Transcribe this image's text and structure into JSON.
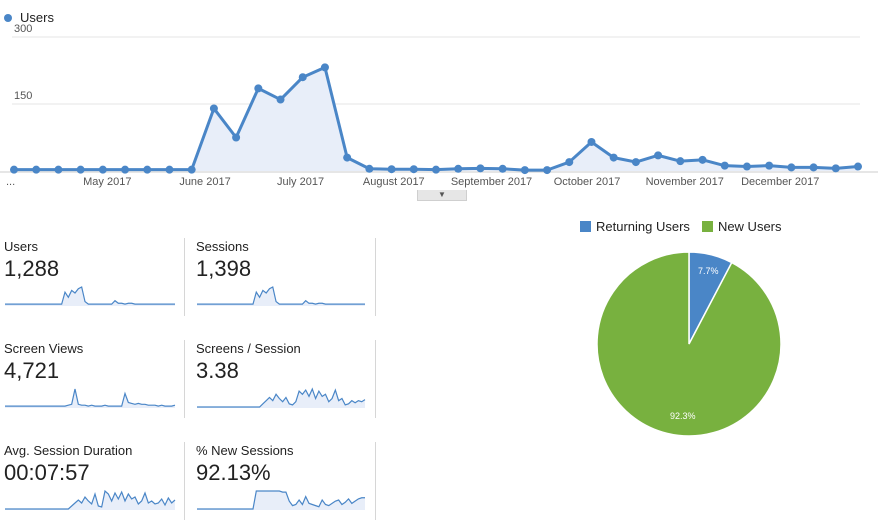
{
  "chart_legend": {
    "label": "Users",
    "color": "#4a86c7"
  },
  "expand_handle_icon": "caret-down",
  "chart_data": [
    {
      "type": "area",
      "x_tick_labels": [
        "...",
        "May 2017",
        "June 2017",
        "July 2017",
        "August 2017",
        "September 2017",
        "October 2017",
        "November 2017",
        "December 2017"
      ],
      "y_tick_labels": [
        "300",
        "150"
      ],
      "ylim": [
        0,
        300
      ],
      "grid": true,
      "series": [
        {
          "name": "Users",
          "color": "#4a86c7",
          "values": [
            3,
            3,
            3,
            3,
            3,
            3,
            3,
            3,
            3,
            140,
            75,
            185,
            160,
            210,
            232,
            30,
            5,
            4,
            4,
            3,
            5,
            6,
            5,
            2,
            2,
            20,
            65,
            30,
            20,
            35,
            22,
            25,
            12,
            10,
            12,
            8,
            8,
            6,
            10
          ]
        }
      ]
    },
    {
      "type": "pie",
      "legend_position": "top",
      "slices": [
        {
          "name": "Returning Users",
          "value": 7.7,
          "label": "7.7%",
          "color": "#4a86c7"
        },
        {
          "name": "New Users",
          "value": 92.3,
          "label": "92.3%",
          "color": "#78b13f"
        }
      ]
    }
  ],
  "metrics": [
    {
      "label": "Users",
      "value": "1,288",
      "spark": [
        1,
        1,
        1,
        1,
        1,
        1,
        1,
        1,
        1,
        1,
        1,
        1,
        1,
        1,
        1,
        1,
        1,
        1,
        15,
        9,
        17,
        14,
        19,
        21,
        4,
        1,
        1,
        1,
        1,
        1,
        1,
        1,
        1,
        5,
        2,
        2,
        1,
        2,
        2,
        1,
        1,
        1,
        1,
        1,
        1,
        1,
        1,
        1,
        1,
        1,
        1,
        1
      ]
    },
    {
      "label": "Sessions",
      "value": "1,398",
      "spark": [
        1,
        1,
        1,
        1,
        1,
        1,
        1,
        1,
        1,
        1,
        1,
        1,
        1,
        1,
        1,
        1,
        1,
        1,
        15,
        9,
        17,
        14,
        19,
        21,
        4,
        1,
        1,
        1,
        1,
        1,
        1,
        1,
        1,
        5,
        2,
        2,
        1,
        2,
        2,
        1,
        1,
        1,
        1,
        1,
        1,
        1,
        1,
        1,
        1,
        1,
        1,
        1
      ]
    },
    {
      "label": "Screen Views",
      "value": "4,721",
      "spark": [
        1,
        1,
        1,
        1,
        1,
        1,
        1,
        1,
        1,
        1,
        1,
        1,
        1,
        1,
        1,
        1,
        1,
        1,
        1,
        2,
        3,
        20,
        3,
        2,
        2,
        1,
        2,
        1,
        1,
        1,
        2,
        1,
        1,
        1,
        1,
        1,
        15,
        5,
        4,
        3,
        4,
        3,
        3,
        2,
        2,
        2,
        1,
        2,
        1,
        1,
        1,
        2
      ]
    },
    {
      "label": "Screens / Session",
      "value": "3.38",
      "spark": [
        0,
        0,
        0,
        0,
        0,
        0,
        0,
        0,
        0,
        0,
        0,
        0,
        0,
        0,
        0,
        0,
        0,
        0,
        0,
        0,
        3,
        6,
        9,
        6,
        12,
        8,
        5,
        9,
        3,
        2,
        5,
        15,
        12,
        16,
        10,
        17,
        8,
        15,
        10,
        12,
        5,
        8,
        16,
        6,
        8,
        2,
        3,
        6,
        4,
        6,
        5,
        7
      ]
    },
    {
      "label": "Avg. Session Duration",
      "value": "00:07:57",
      "spark": [
        0,
        0,
        0,
        0,
        0,
        0,
        0,
        0,
        0,
        0,
        0,
        0,
        0,
        0,
        0,
        0,
        0,
        0,
        0,
        0,
        3,
        6,
        9,
        6,
        12,
        8,
        5,
        15,
        3,
        2,
        18,
        15,
        8,
        16,
        10,
        17,
        8,
        15,
        10,
        12,
        5,
        8,
        16,
        6,
        8,
        5,
        6,
        10,
        4,
        11,
        6,
        9
      ]
    },
    {
      "label": "% New Sessions",
      "value": "92.13%",
      "spark": [
        0,
        0,
        0,
        0,
        0,
        0,
        0,
        0,
        0,
        0,
        0,
        0,
        0,
        0,
        0,
        0,
        0,
        0,
        16,
        16,
        16,
        16,
        16,
        16,
        16,
        16,
        15,
        15,
        7,
        3,
        4,
        8,
        4,
        11,
        5,
        4,
        3,
        2,
        8,
        4,
        3,
        5,
        7,
        8,
        4,
        6,
        9,
        5,
        7,
        9,
        10,
        10
      ]
    }
  ]
}
